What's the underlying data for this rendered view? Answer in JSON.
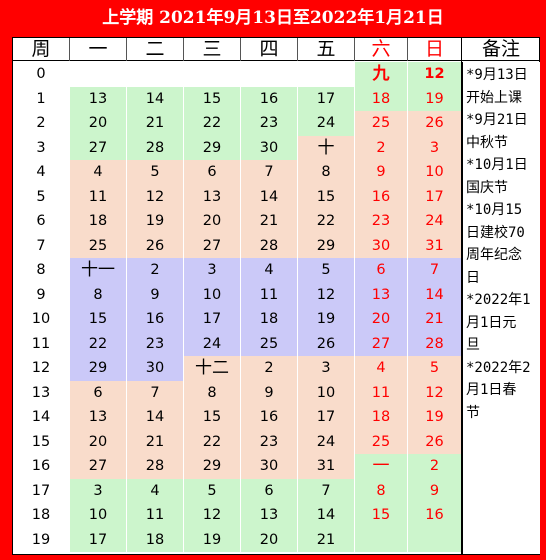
{
  "title": "上学期  2021年9月13日至2022年1月21日",
  "header": {
    "week": "周",
    "days": [
      "一",
      "二",
      "三",
      "四",
      "五",
      "六",
      "日"
    ],
    "notes": "备注"
  },
  "colors": {
    "green": "#ccf5cc",
    "peach": "#f9dccb",
    "blue": "#cbc9f8",
    "weekend_text": "#ff0000",
    "frame": "#ff0000"
  },
  "weeks": [
    {
      "w": "0",
      "d": [
        "",
        "",
        "",
        "",
        "",
        "九",
        "12"
      ],
      "bg": [
        "w",
        "w",
        "w",
        "w",
        "w",
        "g",
        "g"
      ],
      "bold": [
        false,
        false,
        false,
        false,
        false,
        true,
        true
      ]
    },
    {
      "w": "1",
      "d": [
        "13",
        "14",
        "15",
        "16",
        "17",
        "18",
        "19"
      ],
      "bg": [
        "g",
        "g",
        "g",
        "g",
        "g",
        "g",
        "g"
      ]
    },
    {
      "w": "2",
      "d": [
        "20",
        "21",
        "22",
        "23",
        "24",
        "25",
        "26"
      ],
      "bg": [
        "g",
        "g",
        "g",
        "g",
        "g",
        "p",
        "p"
      ]
    },
    {
      "w": "3",
      "d": [
        "27",
        "28",
        "29",
        "30",
        "十",
        "2",
        "3"
      ],
      "bg": [
        "g",
        "g",
        "g",
        "g",
        "p",
        "p",
        "p"
      ]
    },
    {
      "w": "4",
      "d": [
        "4",
        "5",
        "6",
        "7",
        "8",
        "9",
        "10"
      ],
      "bg": [
        "p",
        "p",
        "p",
        "p",
        "p",
        "p",
        "p"
      ]
    },
    {
      "w": "5",
      "d": [
        "11",
        "12",
        "13",
        "14",
        "15",
        "16",
        "17"
      ],
      "bg": [
        "p",
        "p",
        "p",
        "p",
        "p",
        "p",
        "p"
      ]
    },
    {
      "w": "6",
      "d": [
        "18",
        "19",
        "20",
        "21",
        "22",
        "23",
        "24"
      ],
      "bg": [
        "p",
        "p",
        "p",
        "p",
        "p",
        "p",
        "p"
      ]
    },
    {
      "w": "7",
      "d": [
        "25",
        "26",
        "27",
        "28",
        "29",
        "30",
        "31"
      ],
      "bg": [
        "p",
        "p",
        "p",
        "p",
        "p",
        "p",
        "p"
      ]
    },
    {
      "w": "8",
      "d": [
        "十一",
        "2",
        "3",
        "4",
        "5",
        "6",
        "7"
      ],
      "bg": [
        "b",
        "b",
        "b",
        "b",
        "b",
        "b",
        "b"
      ]
    },
    {
      "w": "9",
      "d": [
        "8",
        "9",
        "10",
        "11",
        "12",
        "13",
        "14"
      ],
      "bg": [
        "b",
        "b",
        "b",
        "b",
        "b",
        "b",
        "b"
      ]
    },
    {
      "w": "10",
      "d": [
        "15",
        "16",
        "17",
        "18",
        "19",
        "20",
        "21"
      ],
      "bg": [
        "b",
        "b",
        "b",
        "b",
        "b",
        "b",
        "b"
      ]
    },
    {
      "w": "11",
      "d": [
        "22",
        "23",
        "24",
        "25",
        "26",
        "27",
        "28"
      ],
      "bg": [
        "b",
        "b",
        "b",
        "b",
        "b",
        "b",
        "b"
      ]
    },
    {
      "w": "12",
      "d": [
        "29",
        "30",
        "十二",
        "2",
        "3",
        "4",
        "5"
      ],
      "bg": [
        "b",
        "b",
        "p",
        "p",
        "p",
        "p",
        "p"
      ]
    },
    {
      "w": "13",
      "d": [
        "6",
        "7",
        "8",
        "9",
        "10",
        "11",
        "12"
      ],
      "bg": [
        "p",
        "p",
        "p",
        "p",
        "p",
        "p",
        "p"
      ]
    },
    {
      "w": "14",
      "d": [
        "13",
        "14",
        "15",
        "16",
        "17",
        "18",
        "19"
      ],
      "bg": [
        "p",
        "p",
        "p",
        "p",
        "p",
        "p",
        "p"
      ]
    },
    {
      "w": "15",
      "d": [
        "20",
        "21",
        "22",
        "23",
        "24",
        "25",
        "26"
      ],
      "bg": [
        "p",
        "p",
        "p",
        "p",
        "p",
        "p",
        "p"
      ]
    },
    {
      "w": "16",
      "d": [
        "27",
        "28",
        "29",
        "30",
        "31",
        "一",
        "2"
      ],
      "bg": [
        "p",
        "p",
        "p",
        "p",
        "p",
        "g",
        "g"
      ]
    },
    {
      "w": "17",
      "d": [
        "3",
        "4",
        "5",
        "6",
        "7",
        "8",
        "9"
      ],
      "bg": [
        "g",
        "g",
        "g",
        "g",
        "g",
        "g",
        "g"
      ]
    },
    {
      "w": "18",
      "d": [
        "10",
        "11",
        "12",
        "13",
        "14",
        "15",
        "16"
      ],
      "bg": [
        "g",
        "g",
        "g",
        "g",
        "g",
        "g",
        "g"
      ]
    },
    {
      "w": "19",
      "d": [
        "17",
        "18",
        "19",
        "20",
        "21",
        "",
        ""
      ],
      "bg": [
        "g",
        "g",
        "g",
        "g",
        "g",
        "g",
        "g"
      ]
    }
  ],
  "notes": [
    "*9月13日",
    "开始上课",
    "*9月21日",
    "中秋节",
    "*10月1日",
    "国庆节",
    "*10月15",
    "日建校70",
    "周年纪念",
    "日",
    "*2022年1",
    "月1日元",
    "旦",
    "*2022年2",
    "月1日春",
    "节"
  ]
}
